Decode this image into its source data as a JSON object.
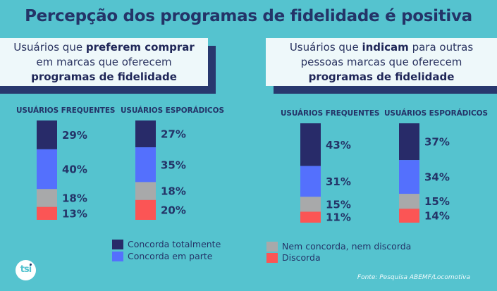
{
  "title": "Percepção dos programas de fidelidade é positiva",
  "panels": [
    {
      "line1_a": "Usuários que ",
      "line1_b": "preferem comprar",
      "line1_c": "",
      "line2": "em marcas que oferecem",
      "line3": "programas de fidelidade"
    },
    {
      "line1_a": "Usuários que ",
      "line1_b": "indicam",
      "line1_c": " para outras",
      "line2": "pessoas marcas que oferecem",
      "line3": "programas de fidelidade"
    }
  ],
  "colors": {
    "background": "#55c3cf",
    "concorda_totalmente": "#282b69",
    "concorda_em_parte": "#5470fd",
    "nem_concorda": "#a8a9aa",
    "discorda": "#fb5555",
    "text": "#243468"
  },
  "chart_data": [
    {
      "type": "bar",
      "stacked": true,
      "title": "Usuários que preferem comprar em marcas que oferecem programas de fidelidade",
      "categories": [
        "USUÁRIOS FREQUENTES",
        "USUÁRIOS ESPORÁDICOS"
      ],
      "series": [
        {
          "name": "Concorda totalmente",
          "values": [
            29,
            27
          ]
        },
        {
          "name": "Concorda em parte",
          "values": [
            40,
            35
          ]
        },
        {
          "name": "Nem concorda, nem discorda",
          "values": [
            18,
            18
          ]
        },
        {
          "name": "Discorda",
          "values": [
            13,
            20
          ]
        }
      ],
      "unit": "%"
    },
    {
      "type": "bar",
      "stacked": true,
      "title": "Usuários que indicam para outras pessoas marcas que oferecem programas de fidelidade",
      "categories": [
        "USUÁRIOS FREQUENTES",
        "USUÁRIOS ESPORÁDICOS"
      ],
      "series": [
        {
          "name": "Concorda totalmente",
          "values": [
            43,
            37
          ]
        },
        {
          "name": "Concorda em parte",
          "values": [
            31,
            34
          ]
        },
        {
          "name": "Nem concorda, nem discorda",
          "values": [
            15,
            15
          ]
        },
        {
          "name": "Discorda",
          "values": [
            11,
            14
          ]
        }
      ],
      "unit": "%"
    }
  ],
  "legend": [
    {
      "label": "Concorda totalmente",
      "color_key": "concorda_totalmente"
    },
    {
      "label": "Concorda em parte",
      "color_key": "concorda_em_parte"
    },
    {
      "label": "Nem concorda, nem discorda",
      "color_key": "nem_concorda"
    },
    {
      "label": "Discorda",
      "color_key": "discorda"
    }
  ],
  "logo_text": "tsi",
  "source": "Fonte: Pesquisa ABEMF/Locomotiva"
}
